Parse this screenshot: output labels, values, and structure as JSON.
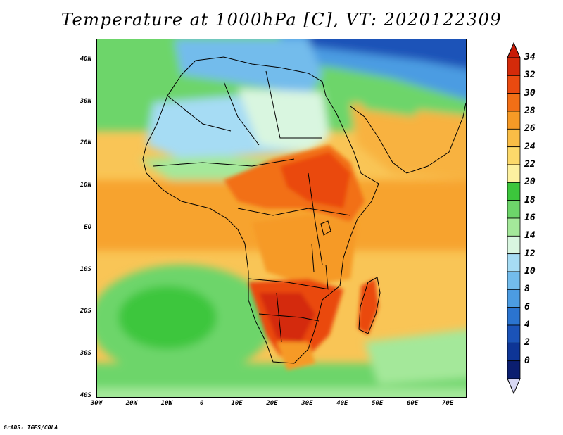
{
  "title": "Temperature at 1000hPa [C], VT: 2020122309",
  "credit": "GrADS: IGES/COLA",
  "map": {
    "lon_range": [
      -30,
      75
    ],
    "lat_range": [
      -40,
      45
    ],
    "lat_ticks": [
      {
        "value": 40,
        "label": "40N"
      },
      {
        "value": 30,
        "label": "30N"
      },
      {
        "value": 20,
        "label": "20N"
      },
      {
        "value": 10,
        "label": "10N"
      },
      {
        "value": 0,
        "label": "EQ"
      },
      {
        "value": -10,
        "label": "10S"
      },
      {
        "value": -20,
        "label": "20S"
      },
      {
        "value": -30,
        "label": "30S"
      },
      {
        "value": -40,
        "label": "40S"
      }
    ],
    "lon_ticks": [
      {
        "value": -30,
        "label": "30W"
      },
      {
        "value": -20,
        "label": "20W"
      },
      {
        "value": -10,
        "label": "10W"
      },
      {
        "value": 0,
        "label": "0"
      },
      {
        "value": 10,
        "label": "10E"
      },
      {
        "value": 20,
        "label": "20E"
      },
      {
        "value": 30,
        "label": "30E"
      },
      {
        "value": 40,
        "label": "40E"
      },
      {
        "value": 50,
        "label": "50E"
      },
      {
        "value": 60,
        "label": "60E"
      },
      {
        "value": 70,
        "label": "70E"
      }
    ]
  },
  "colorbar": {
    "labels": [
      "34",
      "32",
      "30",
      "28",
      "26",
      "24",
      "22",
      "20",
      "18",
      "16",
      "14",
      "12",
      "10",
      "8",
      "6",
      "4",
      "2",
      "0"
    ],
    "colors": [
      "#d42a0a",
      "#ea4a10",
      "#f26f16",
      "#f69a26",
      "#f9bd46",
      "#fcd96a",
      "#fdf1a0",
      "#3cc63c",
      "#6dd56a",
      "#a4e89a",
      "#d9f6e0",
      "#a6dcf4",
      "#73bcec",
      "#4c9ce2",
      "#2b74d0",
      "#1b53b8",
      "#0e3596",
      "#0b1e70"
    ],
    "top_color": "#c81a06",
    "bottom_color": "#d8d8f4"
  }
}
